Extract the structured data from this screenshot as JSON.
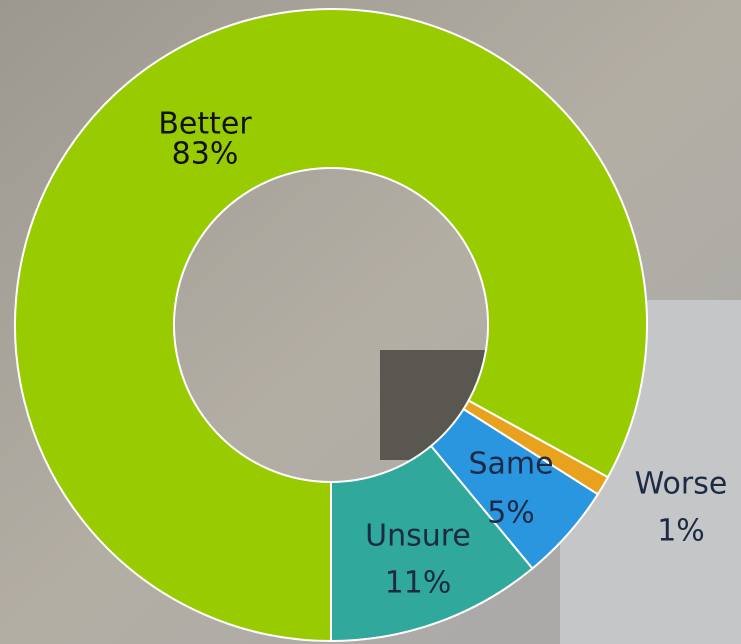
{
  "chart_data": {
    "type": "donut",
    "categories": [
      "Better",
      "Worse",
      "Same",
      "Unsure"
    ],
    "values": [
      83,
      1,
      5,
      11
    ],
    "value_labels": [
      "83%",
      "1%",
      "5%",
      "11%"
    ],
    "colors": [
      "#99cc00",
      "#e8a21e",
      "#2b96e0",
      "#30a89b"
    ],
    "start_angle": 180
  }
}
